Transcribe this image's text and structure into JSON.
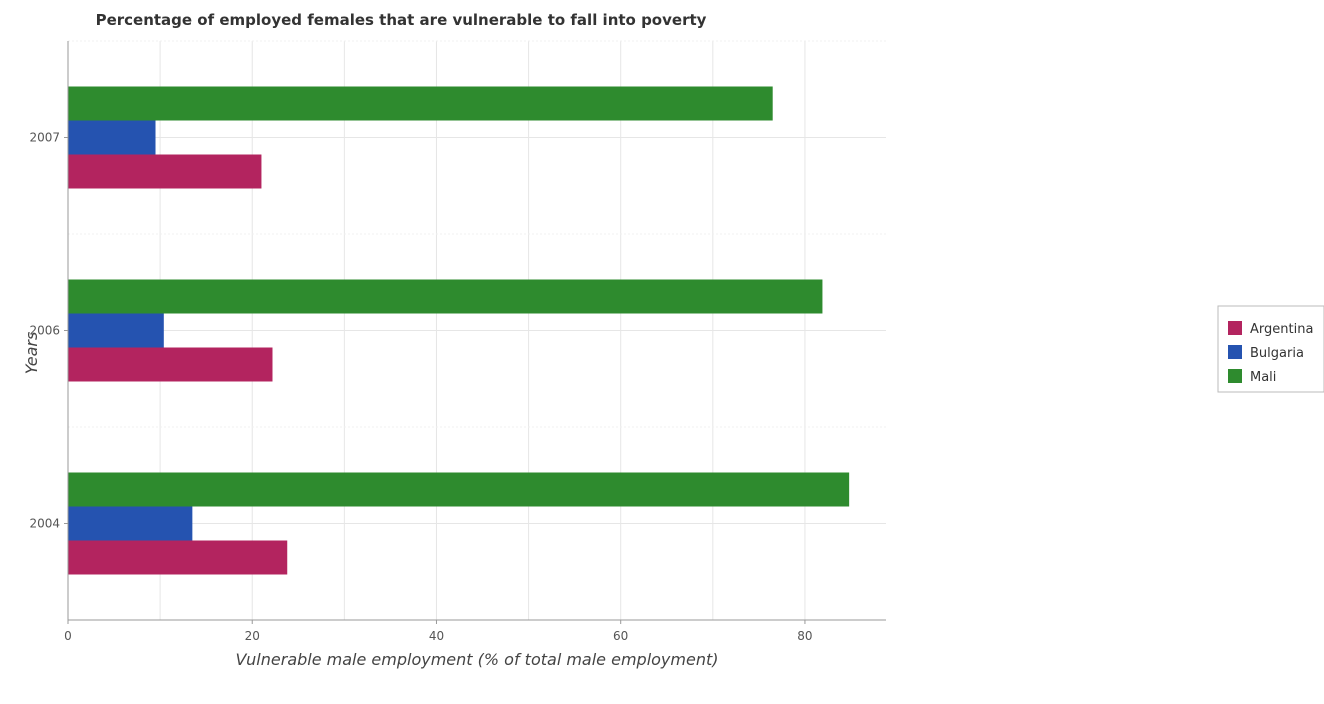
{
  "chart_data": {
    "type": "bar",
    "orientation": "horizontal",
    "title": "Percentage of employed females that are vulnerable to fall into poverty",
    "xlabel": "Vulnerable male employment (% of total male employment)",
    "ylabel": "Years",
    "categories": [
      "2004",
      "2006",
      "2007"
    ],
    "series": [
      {
        "name": "Argentina",
        "color": "#b3245f",
        "values": [
          23.8,
          22.2,
          21.0
        ]
      },
      {
        "name": "Bulgaria",
        "color": "#2553b0",
        "values": [
          13.5,
          10.4,
          9.5
        ]
      },
      {
        "name": "Mali",
        "color": "#2e8b2e",
        "values": [
          84.8,
          81.9,
          76.5
        ]
      }
    ],
    "xlim": [
      0,
      88.8
    ],
    "xticks": [
      0,
      20,
      40,
      60,
      80
    ],
    "grid": true,
    "legend_position": "right"
  }
}
